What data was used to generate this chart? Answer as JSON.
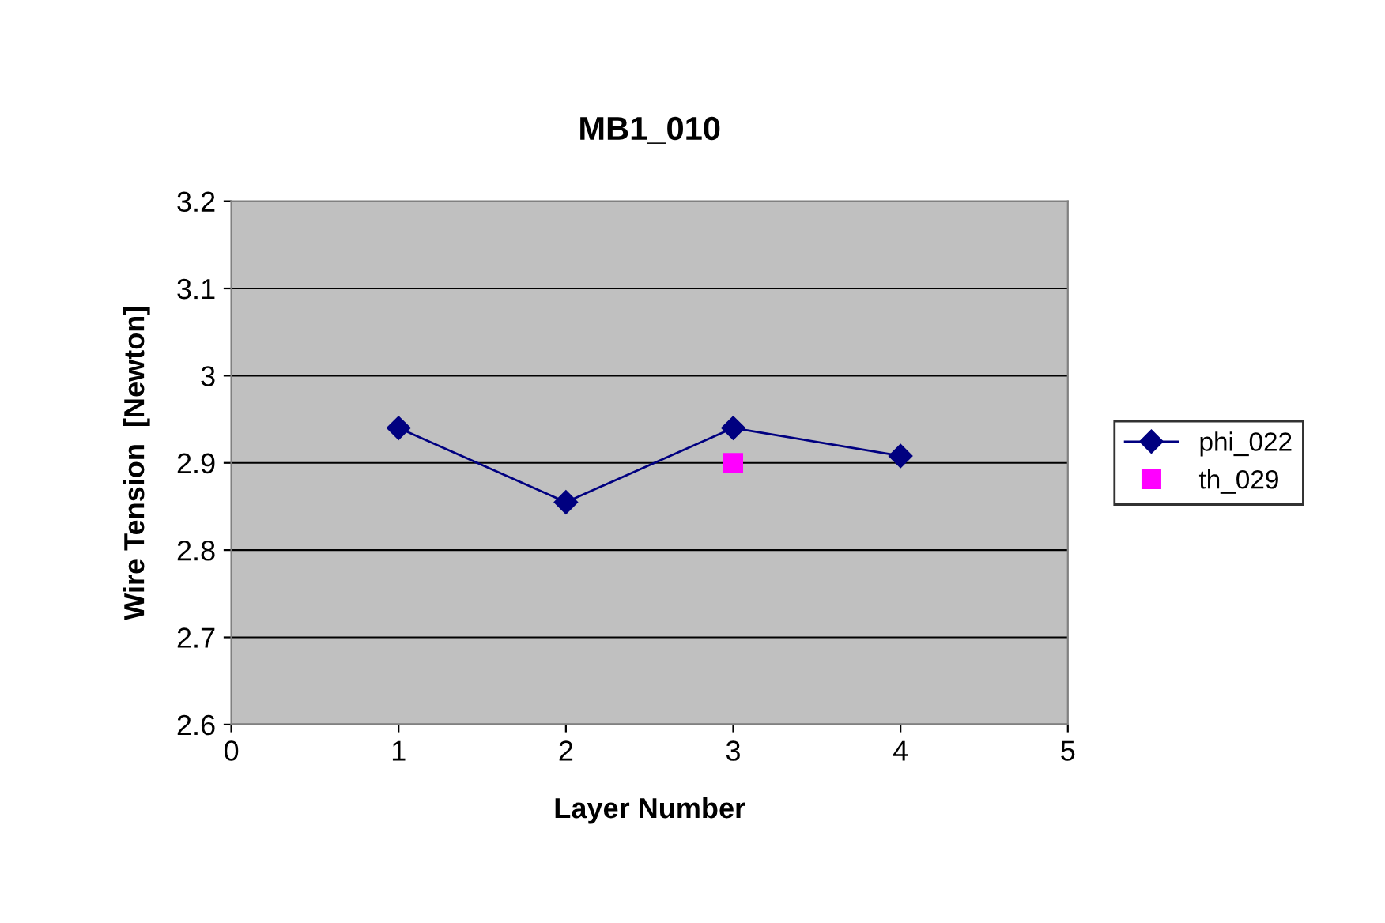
{
  "chart_data": {
    "type": "line",
    "title": "MB1_010",
    "xlabel": "Layer Number",
    "ylabel": "Wire Tension  [Newton]",
    "xlim": [
      0,
      5
    ],
    "xticks": [
      0,
      1,
      2,
      3,
      4,
      5
    ],
    "ylim": [
      2.6,
      3.2
    ],
    "yticks": [
      2.6,
      2.7,
      2.8,
      2.9,
      3,
      3.1,
      3.2
    ],
    "grid": "y",
    "legend": "right",
    "series": [
      {
        "name": "phi_022",
        "color": "#000080",
        "x": [
          1,
          2,
          3,
          4
        ],
        "values": [
          2.94,
          2.855,
          2.94,
          2.908
        ],
        "marker": "diamond",
        "line_style": "solid"
      },
      {
        "name": "th_029",
        "color": "#ff00ff",
        "type": "scatter",
        "x": [
          3
        ],
        "values": [
          2.9
        ],
        "marker": "square"
      }
    ]
  }
}
